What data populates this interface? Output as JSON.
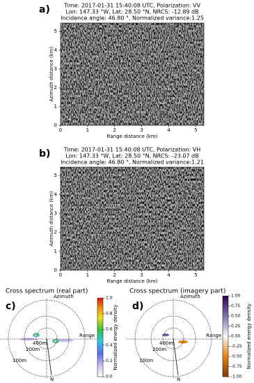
{
  "chart_data": [
    {
      "type": "image",
      "panel": "a)",
      "title": [
        "Time: 2017-01-31 15:40:08 UTC, Polarization: VV",
        "Lon: 147.33 °W, Lat: 28.50 °N, NRCS: -12.89 dB",
        "Incidence angle: 46.80 °, Normalized variance:1.25"
      ],
      "xlabel": "Range distance (km)",
      "ylabel": "Azimuth distance (km)",
      "xlim": [
        0,
        5.3
      ],
      "ylim": [
        0,
        5.45
      ],
      "xticks": [
        0,
        1,
        2,
        3,
        4,
        5
      ],
      "yticks": [
        0,
        1,
        2,
        3,
        4,
        5
      ]
    },
    {
      "type": "image",
      "panel": "b)",
      "title": [
        "Time: 2017-01-31 15:40:08 UTC, Polarization: VH",
        "Lon: 147.33 °W, Lat: 28.50 °N, NRCS: -23.07 dB",
        "Incidence angle: 46.80 °, Normalized variance:1.21"
      ],
      "xlabel": "Range distance (km)",
      "ylabel": "Azimuth distance (km)",
      "xlim": [
        0,
        5.3
      ],
      "ylim": [
        0,
        5.45
      ],
      "xticks": [
        0,
        1,
        2,
        3,
        4,
        5
      ],
      "yticks": [
        0,
        1,
        2,
        3,
        4,
        5
      ]
    },
    {
      "type": "spectrum",
      "panel": "c)",
      "title": "Cross spectrum (real part)",
      "labels": {
        "azimuth": "Azimuth",
        "range": "Range",
        "north": "N"
      },
      "rings": [
        "400m",
        "200m",
        "100m"
      ],
      "colorbar": {
        "label": "Normalized energy density",
        "lim": [
          0,
          1
        ],
        "ticks": [
          {
            "value": 0,
            "label": "0.0"
          },
          {
            "value": 0.2,
            "label": "0.2"
          },
          {
            "value": 0.4,
            "label": "0.4"
          },
          {
            "value": 0.6,
            "label": "0.6"
          },
          {
            "value": 0.8,
            "label": "0.8"
          },
          {
            "value": 1,
            "label": "1.0"
          }
        ]
      }
    },
    {
      "type": "spectrum",
      "panel": "d)",
      "title": "Cross spectrum (imagery part)",
      "labels": {
        "azimuth": "Azimuth",
        "range": "Range",
        "north": "N"
      },
      "rings": [
        "400m",
        "200m",
        "100m"
      ],
      "colorbar": {
        "label": "Normalized energy density",
        "lim": [
          -1,
          1
        ],
        "ticks": [
          {
            "value": -1,
            "label": "-1.00"
          },
          {
            "value": -0.75,
            "label": "-0.75"
          },
          {
            "value": -0.5,
            "label": "-0.50"
          },
          {
            "value": -0.25,
            "label": "-0.25"
          },
          {
            "value": 0,
            "label": "0.00"
          },
          {
            "value": 0.25,
            "label": "0.25"
          },
          {
            "value": 0.5,
            "label": "0.50"
          },
          {
            "value": 0.75,
            "label": "0.75"
          },
          {
            "value": 1,
            "label": "1.00"
          }
        ]
      }
    }
  ]
}
